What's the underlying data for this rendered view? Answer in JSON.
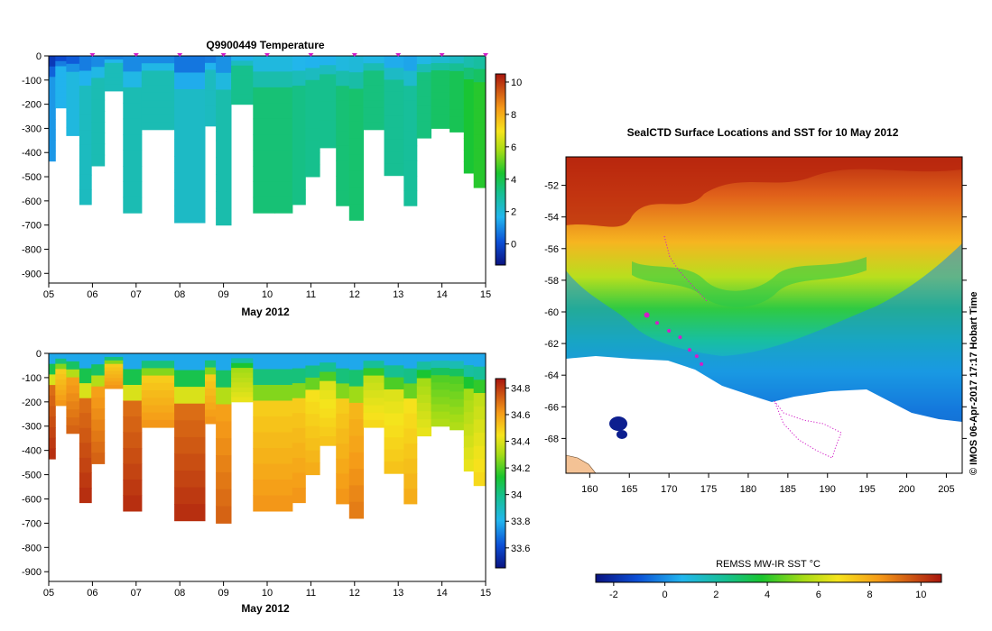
{
  "chart_data": [
    {
      "type": "heatmap",
      "title": "Q9900449  Temperature",
      "xlabel": "May 2012",
      "x_ticks": [
        "05",
        "06",
        "07",
        "08",
        "09",
        "10",
        "11",
        "12",
        "13",
        "14",
        "15"
      ],
      "y_ticks": [
        0,
        -100,
        -200,
        -300,
        -400,
        -500,
        -600,
        -700,
        -800,
        -900
      ],
      "ylim": [
        -940,
        0
      ],
      "colorbar_ticks": [
        10,
        8,
        6,
        4,
        2,
        0
      ],
      "colorbar_range": [
        -1.3,
        10.5
      ],
      "profiles": [
        {
          "x": 5.05,
          "depth": 435,
          "v": 1.2
        },
        {
          "x": 5.25,
          "depth": 215,
          "v": 1.6
        },
        {
          "x": 5.55,
          "depth": 330,
          "v": 1.9
        },
        {
          "x": 5.85,
          "depth": 615,
          "v": 2.4
        },
        {
          "x": 6.1,
          "depth": 455,
          "v": 2.6
        },
        {
          "x": 6.45,
          "depth": 145,
          "v": 2.5
        },
        {
          "x": 6.95,
          "depth": 650,
          "v": 2.6
        },
        {
          "x": 7.3,
          "depth": 305,
          "v": 2.6
        },
        {
          "x": 8.45,
          "depth": 690,
          "v": 2.3
        },
        {
          "x": 8.7,
          "depth": 290,
          "v": 2.4
        },
        {
          "x": 8.95,
          "depth": 700,
          "v": 2.7
        },
        {
          "x": 9.4,
          "depth": 200,
          "v": 3.2
        },
        {
          "x": 9.95,
          "depth": 650,
          "v": 3.5
        },
        {
          "x": 10.4,
          "depth": 650,
          "v": 3.5
        },
        {
          "x": 10.75,
          "depth": 615,
          "v": 3.3
        },
        {
          "x": 11.0,
          "depth": 500,
          "v": 3.2
        },
        {
          "x": 11.4,
          "depth": 380,
          "v": 3.2
        },
        {
          "x": 11.75,
          "depth": 620,
          "v": 3.5
        },
        {
          "x": 12.0,
          "depth": 680,
          "v": 3.6
        },
        {
          "x": 12.4,
          "depth": 305,
          "v": 3.4
        },
        {
          "x": 12.95,
          "depth": 495,
          "v": 3.1
        },
        {
          "x": 13.3,
          "depth": 620,
          "v": 3.0
        },
        {
          "x": 13.55,
          "depth": 340,
          "v": 3.4
        },
        {
          "x": 13.95,
          "depth": 300,
          "v": 3.7
        },
        {
          "x": 14.4,
          "depth": 315,
          "v": 3.9
        },
        {
          "x": 14.6,
          "depth": 485,
          "v": 4.3
        },
        {
          "x": 14.85,
          "depth": 545,
          "v": 4.5
        }
      ],
      "surface_markers": [
        6.0,
        7.0,
        8.0,
        9.0,
        10.0,
        11.0,
        12.0,
        13.0,
        14.0,
        15.0
      ]
    },
    {
      "type": "heatmap",
      "title": "",
      "xlabel": "May 2012",
      "x_ticks": [
        "05",
        "06",
        "07",
        "08",
        "09",
        "10",
        "11",
        "12",
        "13",
        "14",
        "15"
      ],
      "y_ticks": [
        0,
        -100,
        -200,
        -300,
        -400,
        -500,
        -600,
        -700,
        -800,
        -900
      ],
      "ylim": [
        -940,
        0
      ],
      "colorbar_ticks": [
        34.8,
        34.6,
        34.4,
        34.2,
        34,
        33.8,
        33.6
      ],
      "colorbar_range": [
        33.45,
        34.87
      ],
      "profiles": [
        {
          "x": 5.05,
          "depth": 435,
          "v": 34.7
        },
        {
          "x": 5.25,
          "depth": 215,
          "v": 34.5
        },
        {
          "x": 5.55,
          "depth": 330,
          "v": 34.6
        },
        {
          "x": 5.85,
          "depth": 615,
          "v": 34.7
        },
        {
          "x": 6.1,
          "depth": 455,
          "v": 34.6
        },
        {
          "x": 6.45,
          "depth": 145,
          "v": 34.5
        },
        {
          "x": 6.95,
          "depth": 650,
          "v": 34.7
        },
        {
          "x": 7.3,
          "depth": 305,
          "v": 34.5
        },
        {
          "x": 8.45,
          "depth": 690,
          "v": 34.7
        },
        {
          "x": 8.7,
          "depth": 290,
          "v": 34.5
        },
        {
          "x": 8.95,
          "depth": 700,
          "v": 34.6
        },
        {
          "x": 9.4,
          "depth": 200,
          "v": 34.3
        },
        {
          "x": 9.95,
          "depth": 650,
          "v": 34.5
        },
        {
          "x": 10.4,
          "depth": 650,
          "v": 34.5
        },
        {
          "x": 10.75,
          "depth": 615,
          "v": 34.5
        },
        {
          "x": 11.0,
          "depth": 500,
          "v": 34.45
        },
        {
          "x": 11.4,
          "depth": 380,
          "v": 34.4
        },
        {
          "x": 11.75,
          "depth": 620,
          "v": 34.5
        },
        {
          "x": 12.0,
          "depth": 680,
          "v": 34.55
        },
        {
          "x": 12.4,
          "depth": 305,
          "v": 34.35
        },
        {
          "x": 12.95,
          "depth": 495,
          "v": 34.4
        },
        {
          "x": 13.3,
          "depth": 620,
          "v": 34.45
        },
        {
          "x": 13.55,
          "depth": 340,
          "v": 34.3
        },
        {
          "x": 13.95,
          "depth": 300,
          "v": 34.2
        },
        {
          "x": 14.4,
          "depth": 315,
          "v": 34.2
        },
        {
          "x": 14.6,
          "depth": 485,
          "v": 34.3
        },
        {
          "x": 14.85,
          "depth": 545,
          "v": 34.35
        }
      ]
    },
    {
      "type": "map",
      "title": "SealCTD Surface Locations and SST for 10 May 2012",
      "x_ticks": [
        160,
        165,
        170,
        175,
        180,
        185,
        190,
        195,
        200,
        205
      ],
      "xlim": [
        157,
        207
      ],
      "y_ticks": [
        -52,
        -54,
        -56,
        -58,
        -60,
        -62,
        -64,
        -66,
        -68
      ],
      "ylim": [
        -70.2,
        -50.2
      ],
      "colorbar_label": "REMSS MW-IR SST °C",
      "colorbar_ticks": [
        -2,
        0,
        2,
        4,
        6,
        8,
        10
      ],
      "colorbar_range": [
        -2.7,
        10.8
      ],
      "side_label": "© IMOS 06-Apr-2017 17:17 Hobart Time",
      "seal_locations": [
        [
          167.2,
          -60.2
        ],
        [
          168.5,
          -60.7
        ],
        [
          170.0,
          -61.2
        ],
        [
          171.4,
          -61.6
        ],
        [
          172.6,
          -62.4
        ],
        [
          173.5,
          -62.8
        ],
        [
          174.1,
          -63.3
        ]
      ]
    }
  ]
}
